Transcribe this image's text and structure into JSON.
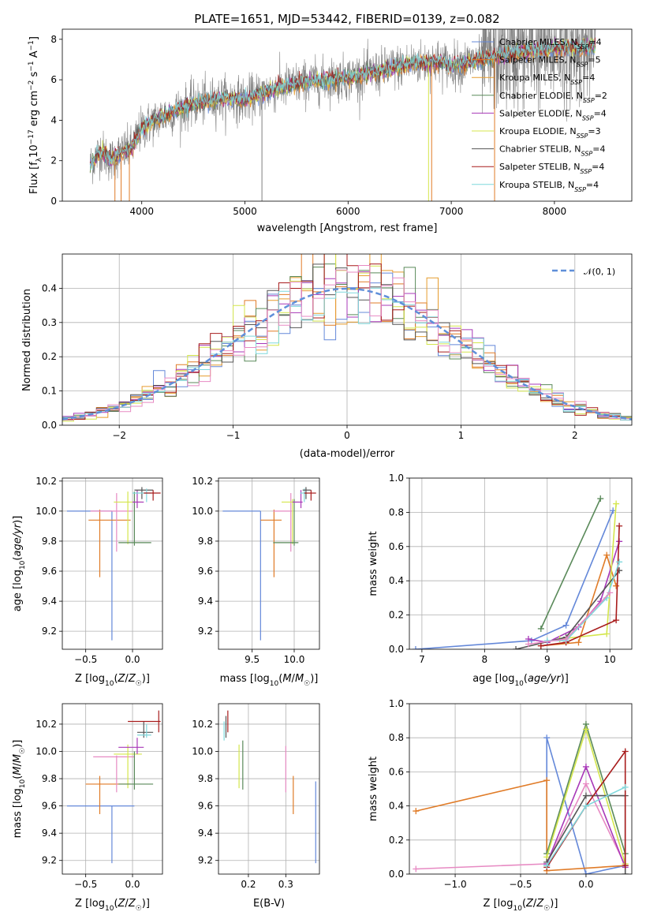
{
  "figure": {
    "title": "PLATE=1651, MJD=53442, FIBERID=0139, z=0.082",
    "colors": {
      "Chabrier MILES": "#6488d9",
      "Salpeter MILES": "#e07b27",
      "Kroupa MILES": "#e69c2e",
      "Chabrier ELODIE": "#5a8a5a",
      "Salpeter ELODIE": "#a838b8",
      "Kroupa ELODIE": "#d4e64c",
      "Chabrier STELIB": "#555555",
      "Salpeter STELIB": "#a81c1c",
      "Kroupa STELIB": "#7fd8dc",
      "pink": "#e78ac3",
      "data": "#808080",
      "normal": "#5f8fd9"
    }
  },
  "chart_data": [
    {
      "id": "spectrum",
      "type": "line",
      "xlabel": "wavelength [Angstrom, rest frame]",
      "ylabel": "Flux [f_λ10^-17 erg cm^-2 s^-1 A^-1]",
      "xlim": [
        3230,
        8750
      ],
      "ylim": [
        0,
        8.5
      ],
      "xticks": [
        4000,
        5000,
        6000,
        7000,
        8000
      ],
      "yticks": [
        0,
        2,
        4,
        6,
        8
      ],
      "legend_position": "upper-right",
      "continuum": {
        "x": [
          3500,
          3600,
          3700,
          3800,
          3900,
          4000,
          4200,
          4500,
          4800,
          5000,
          5200,
          5500,
          5800,
          6000,
          6300,
          6600,
          6900,
          7000,
          7300,
          7600,
          8000,
          8300,
          8750
        ],
        "y": [
          1.8,
          2.5,
          2.0,
          2.4,
          2.6,
          3.6,
          4.2,
          4.8,
          5.1,
          5.0,
          5.4,
          5.8,
          6.0,
          6.1,
          6.4,
          6.8,
          6.9,
          6.7,
          7.0,
          7.3,
          7.6,
          7.6,
          7.8
        ]
      },
      "series": [
        {
          "name": "Chabrier MILES",
          "nssp": "4"
        },
        {
          "name": "Salpeter MILES",
          "nssp": "5"
        },
        {
          "name": "Kroupa MILES",
          "nssp": "4"
        },
        {
          "name": "Chabrier ELODIE",
          "nssp": "2"
        },
        {
          "name": "Salpeter ELODIE",
          "nssp": "4"
        },
        {
          "name": "Kroupa ELODIE",
          "nssp": "3"
        },
        {
          "name": "Chabrier STELIB",
          "nssp": "4"
        },
        {
          "name": "Salpeter STELIB",
          "nssp": "4"
        },
        {
          "name": "Kroupa STELIB",
          "nssp": "4"
        }
      ],
      "drop_lines_x": [
        3740,
        3800,
        3880,
        5165,
        6780,
        6810,
        7420
      ]
    },
    {
      "id": "residuals",
      "type": "histogram",
      "xlabel": "(data-model)/error",
      "ylabel": "Normed distribution",
      "xlim": [
        -2.5,
        2.5
      ],
      "ylim": [
        0,
        0.5
      ],
      "xticks": [
        -2,
        -1,
        0,
        1,
        2
      ],
      "yticks": [
        0,
        0.1,
        0.2,
        0.3,
        0.4
      ],
      "grid": true,
      "legend_label": "𝒩(0, 1)",
      "legend_position": "upper-right"
    },
    {
      "id": "age_vs_Z",
      "type": "errorbar",
      "xlabel": "Z [log10(Z/Z☉)]",
      "ylabel": "age [log10(age/yr)]",
      "xlim": [
        -0.75,
        0.32
      ],
      "ylim": [
        9.08,
        10.22
      ],
      "xticks": [
        -0.5,
        0.0
      ],
      "yticks": [
        9.2,
        9.4,
        9.6,
        9.8,
        10.0,
        10.2
      ],
      "points": [
        {
          "c": "Chabrier MILES",
          "x": -0.22,
          "y": 10.0,
          "xl": -0.7,
          "xh": -0.22,
          "yl": 9.14,
          "yh": 10.0
        },
        {
          "c": "Salpeter MILES",
          "x": -0.35,
          "y": 9.94,
          "xl": -0.47,
          "xh": -0.02,
          "yl": 9.56,
          "yh": 10.01
        },
        {
          "c": "pink",
          "x": -0.17,
          "y": 10.0,
          "xl": -0.45,
          "xh": 0.0,
          "yl": 9.73,
          "yh": 10.12
        },
        {
          "c": "Kroupa ELODIE",
          "x": -0.05,
          "y": 10.06,
          "xl": -0.2,
          "xh": 0.1,
          "yl": 9.78,
          "yh": 10.13
        },
        {
          "c": "Chabrier ELODIE",
          "x": 0.02,
          "y": 9.79,
          "xl": -0.15,
          "xh": 0.2,
          "yl": 9.77,
          "yh": 10.13
        },
        {
          "c": "Salpeter ELODIE",
          "x": 0.05,
          "y": 10.06,
          "xl": -0.0,
          "xh": 0.12,
          "yl": 10.02,
          "yh": 10.14
        },
        {
          "c": "Chabrier STELIB",
          "x": 0.1,
          "y": 10.14,
          "xl": 0.02,
          "xh": 0.22,
          "yl": 10.08,
          "yh": 10.16
        },
        {
          "c": "Kroupa STELIB",
          "x": 0.15,
          "y": 10.12,
          "xl": 0.0,
          "xh": 0.2,
          "yl": 10.06,
          "yh": 10.15
        },
        {
          "c": "Salpeter STELIB",
          "x": 0.22,
          "y": 10.12,
          "xl": 0.12,
          "xh": 0.3,
          "yl": 10.07,
          "yh": 10.14
        }
      ]
    },
    {
      "id": "age_vs_mass",
      "type": "errorbar",
      "xlabel": "mass [log10(M/M☉)]",
      "ylabel": "",
      "xlim": [
        9.1,
        10.3
      ],
      "ylim": [
        9.08,
        10.22
      ],
      "xticks": [
        9.5,
        10.0
      ],
      "yticks": [
        9.2,
        9.4,
        9.6,
        9.8,
        10.0,
        10.2
      ],
      "points": [
        {
          "c": "Chabrier MILES",
          "x": 9.6,
          "y": 10.0,
          "xl": 9.15,
          "xh": 9.6,
          "yl": 9.14,
          "yh": 10.0
        },
        {
          "c": "Salpeter MILES",
          "x": 9.76,
          "y": 9.94,
          "xl": 9.6,
          "xh": 9.85,
          "yl": 9.56,
          "yh": 10.01
        },
        {
          "c": "pink",
          "x": 9.96,
          "y": 10.0,
          "xl": 9.75,
          "xh": 9.97,
          "yl": 9.73,
          "yh": 10.12
        },
        {
          "c": "Kroupa ELODIE",
          "x": 9.98,
          "y": 10.06,
          "xl": 9.85,
          "xh": 10.05,
          "yl": 9.78,
          "yh": 10.08
        },
        {
          "c": "Chabrier ELODIE",
          "x": 10.0,
          "y": 9.79,
          "xl": 9.75,
          "xh": 10.05,
          "yl": 9.77,
          "yh": 10.08
        },
        {
          "c": "Salpeter ELODIE",
          "x": 10.08,
          "y": 10.06,
          "xl": 9.98,
          "xh": 10.1,
          "yl": 10.02,
          "yh": 10.14
        },
        {
          "c": "Kroupa STELIB",
          "x": 10.12,
          "y": 10.12,
          "xl": 10.07,
          "xh": 10.16,
          "yl": 10.06,
          "yh": 10.15
        },
        {
          "c": "Chabrier STELIB",
          "x": 10.14,
          "y": 10.14,
          "xl": 10.1,
          "xh": 10.2,
          "yl": 10.08,
          "yh": 10.16
        },
        {
          "c": "Salpeter STELIB",
          "x": 10.2,
          "y": 10.12,
          "xl": 10.12,
          "xh": 10.26,
          "yl": 10.07,
          "yh": 10.14
        }
      ]
    },
    {
      "id": "weight_vs_age",
      "type": "line",
      "xlabel": "age [log10(age/yr)]",
      "ylabel": "mass weight",
      "xlim": [
        6.8,
        10.35
      ],
      "ylim": [
        0,
        1.0
      ],
      "xticks": [
        7,
        8,
        9,
        10
      ],
      "yticks": [
        0.0,
        0.2,
        0.4,
        0.6,
        0.8,
        1.0
      ],
      "grid": true,
      "series": [
        {
          "c": "Chabrier MILES",
          "x": [
            6.9,
            8.75,
            9.3,
            10.05
          ],
          "y": [
            0.0,
            0.05,
            0.14,
            0.81
          ]
        },
        {
          "c": "Salpeter MILES",
          "x": [
            8.9,
            9.5,
            9.95,
            10.1
          ],
          "y": [
            0.02,
            0.04,
            0.55,
            0.37
          ]
        },
        {
          "c": "Chabrier ELODIE",
          "x": [
            8.9,
            9.85
          ],
          "y": [
            0.12,
            0.88
          ]
        },
        {
          "c": "Salpeter ELODIE",
          "x": [
            8.7,
            9.0,
            9.5,
            9.85,
            10.15
          ],
          "y": [
            0.06,
            0.04,
            0.13,
            0.28,
            0.63
          ]
        },
        {
          "c": "Kroupa ELODIE",
          "x": [
            9.2,
            9.95,
            10.1
          ],
          "y": [
            0.06,
            0.09,
            0.85
          ]
        },
        {
          "c": "Chabrier STELIB",
          "x": [
            8.5,
            9.3,
            10.15
          ],
          "y": [
            0.0,
            0.07,
            0.46
          ]
        },
        {
          "c": "Salpeter STELIB",
          "x": [
            8.9,
            9.3,
            10.1,
            10.15
          ],
          "y": [
            0.02,
            0.04,
            0.17,
            0.72
          ]
        },
        {
          "c": "Kroupa STELIB",
          "x": [
            9.0,
            9.3,
            9.95,
            10.15
          ],
          "y": [
            0.05,
            0.05,
            0.3,
            0.51
          ]
        },
        {
          "c": "pink",
          "x": [
            8.7,
            9.3,
            10.0
          ],
          "y": [
            0.03,
            0.06,
            0.33
          ]
        }
      ]
    },
    {
      "id": "mass_vs_Z",
      "type": "errorbar",
      "xlabel": "Z [log10(Z/Z☉)]",
      "ylabel": "mass [log10(M/M☉)]",
      "xlim": [
        -0.75,
        0.32
      ],
      "ylim": [
        9.1,
        10.35
      ],
      "xticks": [
        -0.5,
        0.0
      ],
      "yticks": [
        9.2,
        9.4,
        9.6,
        9.8,
        10.0,
        10.2
      ],
      "points": [
        {
          "c": "Chabrier MILES",
          "x": -0.22,
          "y": 9.6,
          "xl": -0.7,
          "xh": 0.02,
          "yl": 9.18,
          "yh": 9.6
        },
        {
          "c": "Salpeter MILES",
          "x": -0.35,
          "y": 9.76,
          "xl": -0.5,
          "xh": -0.02,
          "yl": 9.54,
          "yh": 9.82
        },
        {
          "c": "pink",
          "x": -0.17,
          "y": 9.96,
          "xl": -0.42,
          "xh": 0.02,
          "yl": 9.7,
          "yh": 9.97
        },
        {
          "c": "Kroupa ELODIE",
          "x": -0.05,
          "y": 9.98,
          "xl": -0.2,
          "xh": 0.1,
          "yl": 9.73,
          "yh": 10.05
        },
        {
          "c": "Chabrier ELODIE",
          "x": 0.02,
          "y": 9.76,
          "xl": -0.15,
          "xh": 0.22,
          "yl": 9.72,
          "yh": 10.0
        },
        {
          "c": "Salpeter ELODIE",
          "x": 0.05,
          "y": 10.03,
          "xl": -0.15,
          "xh": 0.12,
          "yl": 9.98,
          "yh": 10.1
        },
        {
          "c": "Chabrier STELIB",
          "x": 0.12,
          "y": 10.14,
          "xl": 0.05,
          "xh": 0.22,
          "yl": 10.1,
          "yh": 10.22
        },
        {
          "c": "Kroupa STELIB",
          "x": 0.15,
          "y": 10.12,
          "xl": 0.05,
          "xh": 0.2,
          "yl": 10.1,
          "yh": 10.2
        },
        {
          "c": "Salpeter STELIB",
          "x": 0.28,
          "y": 10.22,
          "xl": -0.05,
          "xh": 0.3,
          "yl": 10.14,
          "yh": 10.3
        }
      ]
    },
    {
      "id": "mass_vs_EBV",
      "type": "errorbar",
      "xlabel": "E(B-V)",
      "ylabel": "",
      "xlim": [
        0.12,
        0.39
      ],
      "ylim": [
        9.1,
        10.35
      ],
      "xticks": [
        0.2,
        0.3
      ],
      "yticks": [
        9.2,
        9.4,
        9.6,
        9.8,
        10.0,
        10.2
      ],
      "points": [
        {
          "c": "Chabrier MILES",
          "x": 0.38,
          "y": 9.6,
          "yl": 9.18,
          "yh": 9.78
        },
        {
          "c": "Salpeter MILES",
          "x": 0.32,
          "y": 9.76,
          "yl": 9.54,
          "yh": 9.82
        },
        {
          "c": "pink",
          "x": 0.3,
          "y": 9.96,
          "yl": 9.7,
          "yh": 10.04
        },
        {
          "c": "Kroupa ELODIE",
          "x": 0.175,
          "y": 9.98,
          "yl": 9.73,
          "yh": 10.05
        },
        {
          "c": "Chabrier ELODIE",
          "x": 0.185,
          "y": 9.9,
          "yl": 9.72,
          "yh": 10.08
        },
        {
          "c": "Chabrier STELIB",
          "x": 0.14,
          "y": 10.2,
          "yl": 10.1,
          "yh": 10.26
        },
        {
          "c": "Kroupa STELIB",
          "x": 0.135,
          "y": 10.15,
          "yl": 10.08,
          "yh": 10.22
        },
        {
          "c": "Salpeter STELIB",
          "x": 0.145,
          "y": 10.22,
          "yl": 10.14,
          "yh": 10.3
        }
      ]
    },
    {
      "id": "weight_vs_Z",
      "type": "line",
      "xlabel": "Z [log10(Z/Z☉)]",
      "ylabel": "mass weight",
      "xlim": [
        -1.35,
        0.35
      ],
      "ylim": [
        0,
        1.0
      ],
      "xticks": [
        -1.0,
        -0.5,
        0.0
      ],
      "yticks": [
        0.0,
        0.2,
        0.4,
        0.6,
        0.8,
        1.0
      ],
      "grid": true,
      "series": [
        {
          "c": "Chabrier MILES",
          "x": [
            -0.3,
            -0.3,
            0.0,
            0.3
          ],
          "y": [
            0.05,
            0.8,
            0.0,
            0.05
          ]
        },
        {
          "c": "Salpeter MILES",
          "x": [
            -1.3,
            -0.3,
            -0.3,
            0.3
          ],
          "y": [
            0.37,
            0.55,
            0.02,
            0.05
          ]
        },
        {
          "c": "pink",
          "x": [
            -1.3,
            -0.3,
            0.0,
            0.3
          ],
          "y": [
            0.03,
            0.06,
            0.53,
            0.05
          ]
        },
        {
          "c": "Chabrier ELODIE",
          "x": [
            -0.3,
            0.0,
            0.3
          ],
          "y": [
            0.12,
            0.88,
            0.12
          ]
        },
        {
          "c": "Salpeter ELODIE",
          "x": [
            -0.3,
            0.0,
            0.3
          ],
          "y": [
            0.06,
            0.63,
            0.04
          ]
        },
        {
          "c": "Kroupa ELODIE",
          "x": [
            -0.3,
            0.0,
            0.3
          ],
          "y": [
            0.1,
            0.85,
            0.06
          ]
        },
        {
          "c": "Chabrier STELIB",
          "x": [
            -0.3,
            0.0,
            0.3,
            0.3
          ],
          "y": [
            0.07,
            0.46,
            0.46,
            0.0
          ]
        },
        {
          "c": "Salpeter STELIB",
          "x": [
            -0.3,
            0.0,
            0.3,
            0.3
          ],
          "y": [
            0.04,
            0.4,
            0.72,
            0.05
          ]
        },
        {
          "c": "Kroupa STELIB",
          "x": [
            -0.3,
            0.0,
            0.3
          ],
          "y": [
            0.05,
            0.4,
            0.51
          ]
        }
      ]
    }
  ]
}
